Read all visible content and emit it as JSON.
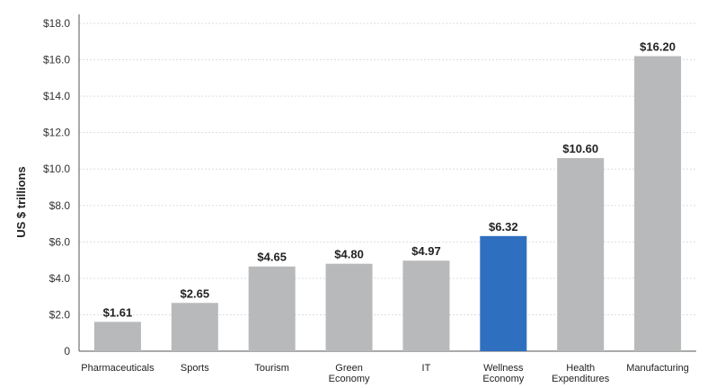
{
  "chart_data": {
    "type": "bar",
    "ylabel": "US $ trillions",
    "xlabel": "",
    "ylim": [
      0,
      18
    ],
    "yticks": [
      0,
      2,
      4,
      6,
      8,
      10,
      12,
      14,
      16,
      18
    ],
    "ytick_labels": [
      "0",
      "$2.0",
      "$4.0",
      "$6.0",
      "$8.0",
      "$10.0",
      "$12.0",
      "$14.0",
      "$16.0",
      "$18.0"
    ],
    "grid": true,
    "categories": [
      [
        "Pharmaceuticals"
      ],
      [
        "Sports"
      ],
      [
        "Tourism"
      ],
      [
        "Green",
        "Economy"
      ],
      [
        "IT"
      ],
      [
        "Wellness",
        "Economy"
      ],
      [
        "Health",
        "Expenditures"
      ],
      [
        "Manufacturing"
      ]
    ],
    "values": [
      1.61,
      2.65,
      4.65,
      4.8,
      4.97,
      6.32,
      10.6,
      16.2
    ],
    "value_labels": [
      "$1.61",
      "$2.65",
      "$4.65",
      "$4.80",
      "$4.97",
      "$6.32",
      "$10.60",
      "$16.20"
    ],
    "highlight_index": 5,
    "colors": {
      "bar": "#b8b9bb",
      "highlight": "#2f6fbf",
      "grid": "#dddddd",
      "axis": "#555555"
    }
  }
}
